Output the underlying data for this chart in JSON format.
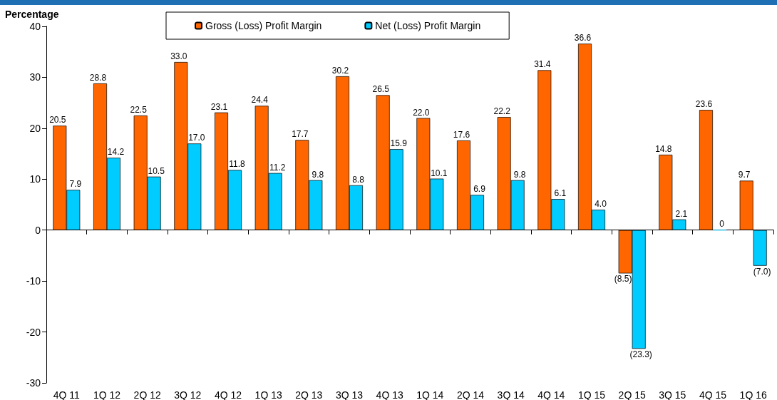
{
  "chart_data": {
    "type": "bar",
    "ylabel": "Percentage",
    "categories": [
      "4Q 11",
      "1Q 12",
      "2Q 12",
      "3Q 12",
      "4Q 12",
      "1Q 13",
      "2Q 13",
      "3Q 13",
      "4Q 13",
      "1Q 14",
      "2Q 14",
      "3Q 14",
      "4Q 14",
      "1Q 15",
      "2Q 15",
      "3Q 15",
      "4Q 15",
      "1Q 16"
    ],
    "series": [
      {
        "name": "Gross (Loss) Profit Margin",
        "color": "#ff6600",
        "values": [
          20.5,
          28.8,
          22.5,
          33.0,
          23.1,
          24.4,
          17.7,
          30.2,
          26.5,
          22.0,
          17.6,
          22.2,
          31.4,
          36.6,
          -8.5,
          14.8,
          23.6,
          9.7
        ],
        "value_labels": [
          "20.5",
          "28.8",
          "22.5",
          "33.0",
          "23.1",
          "24.4",
          "17.7",
          "30.2",
          "26.5",
          "22.0",
          "17.6",
          "22.2",
          "31.4",
          "36.6",
          "(8.5)",
          "14.8",
          "23.6",
          "9.7"
        ]
      },
      {
        "name": "Net (Loss) Profit Margin",
        "color": "#00ccff",
        "values": [
          7.9,
          14.2,
          10.5,
          17.0,
          11.8,
          11.2,
          9.8,
          8.8,
          15.9,
          10.1,
          6.9,
          9.8,
          6.1,
          4.0,
          -23.3,
          2.1,
          0,
          -7.0
        ],
        "value_labels": [
          "7.9",
          "14.2",
          "10.5",
          "17.0",
          "11.8",
          "11.2",
          "9.8",
          "8.8",
          "15.9",
          "10.1",
          "6.9",
          "9.8",
          "6.1",
          "4.0",
          "(23.3)",
          "2.1",
          "0",
          "(7.0)"
        ]
      }
    ],
    "ylim": [
      -30,
      40
    ],
    "yticks": [
      -30,
      -20,
      -10,
      0,
      10,
      20,
      30,
      40
    ],
    "legend": "top"
  }
}
